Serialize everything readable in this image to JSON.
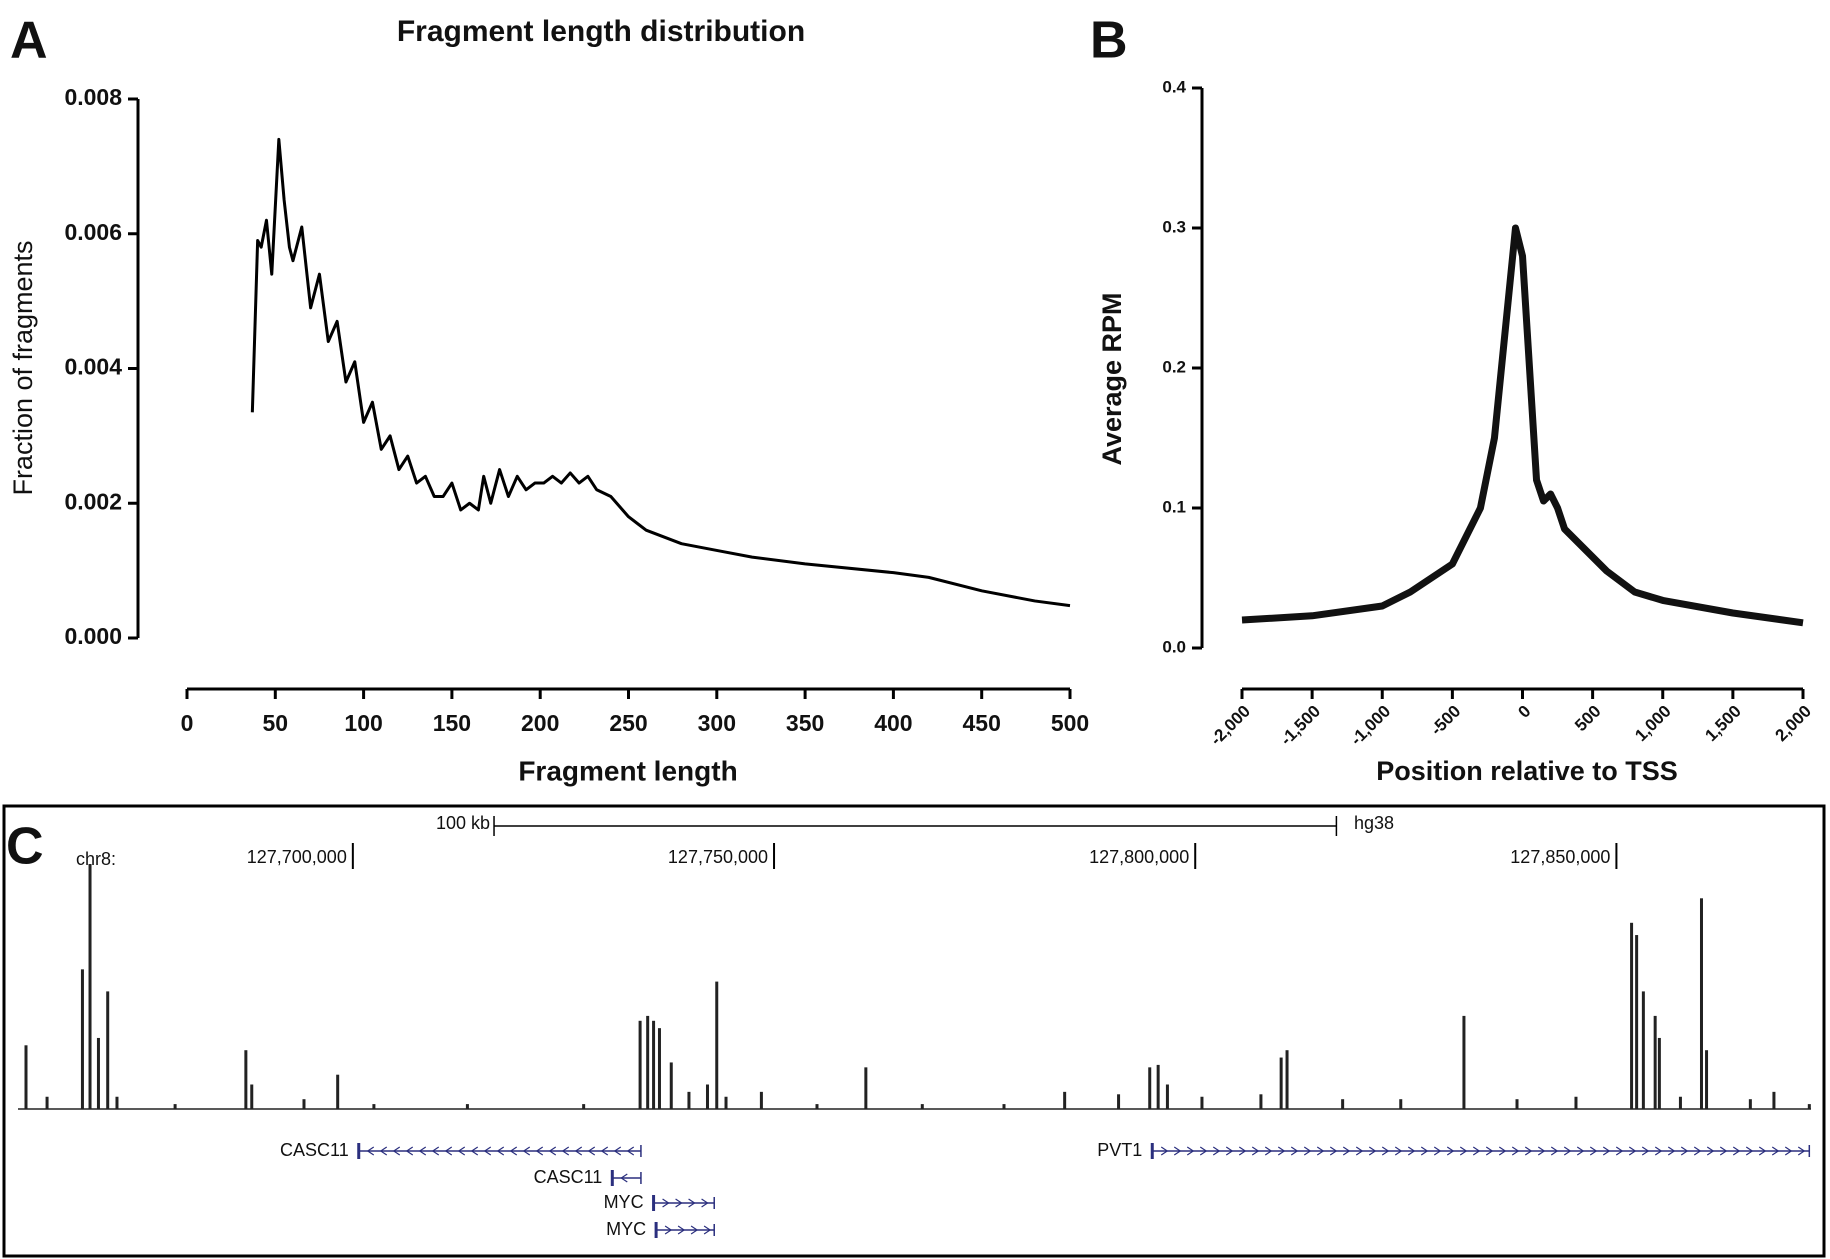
{
  "chart_data": [
    {
      "type": "line",
      "panel": "A",
      "title": "Fragment length distribution",
      "xlabel": "Fragment length",
      "ylabel": "Fraction of fragments",
      "xlim": [
        0,
        500
      ],
      "xticks": [
        0,
        50,
        100,
        150,
        200,
        250,
        300,
        350,
        400,
        450,
        500
      ],
      "ylim": [
        0,
        0.008
      ],
      "yticks": [
        {
          "value": 0,
          "label": "0.000"
        },
        0.002,
        0.004,
        0.006,
        0.008
      ],
      "color": "#000000",
      "x": [
        37,
        40,
        42,
        45,
        48,
        52,
        55,
        58,
        60,
        65,
        70,
        75,
        80,
        85,
        90,
        95,
        100,
        105,
        110,
        115,
        120,
        125,
        130,
        135,
        140,
        145,
        150,
        155,
        160,
        165,
        168,
        172,
        177,
        182,
        187,
        192,
        197,
        202,
        207,
        212,
        217,
        222,
        227,
        232,
        240,
        250,
        260,
        270,
        280,
        300,
        320,
        350,
        400,
        420,
        450,
        480,
        500
      ],
      "values": [
        0.00335,
        0.0059,
        0.0058,
        0.0062,
        0.0054,
        0.0074,
        0.0065,
        0.0058,
        0.0056,
        0.0061,
        0.0049,
        0.0054,
        0.0044,
        0.0047,
        0.0038,
        0.0041,
        0.0032,
        0.0035,
        0.0028,
        0.003,
        0.0025,
        0.0027,
        0.0023,
        0.0024,
        0.0021,
        0.0021,
        0.0023,
        0.0019,
        0.002,
        0.0019,
        0.0024,
        0.002,
        0.0025,
        0.0021,
        0.0024,
        0.0022,
        0.0023,
        0.0023,
        0.0024,
        0.0023,
        0.00245,
        0.0023,
        0.0024,
        0.0022,
        0.0021,
        0.0018,
        0.0016,
        0.0015,
        0.0014,
        0.0013,
        0.0012,
        0.0011,
        0.00097,
        0.0009,
        0.0007,
        0.00055,
        0.00048
      ]
    },
    {
      "type": "line",
      "panel": "B",
      "xlabel": "Position relative to TSS",
      "ylabel": "Average RPM",
      "xlim": [
        -2000,
        2000
      ],
      "xticks": [
        {
          "value": -2000,
          "label": "-2,000"
        },
        {
          "value": -1500,
          "label": "-1,500"
        },
        {
          "value": -1000,
          "label": "-1,000"
        },
        -500,
        0,
        500,
        {
          "value": 1000,
          "label": "1,000"
        },
        {
          "value": 1500,
          "label": "1,500"
        },
        {
          "value": 2000,
          "label": "2,000"
        }
      ],
      "ylim": [
        0,
        0.4
      ],
      "yticks": [
        {
          "value": 0,
          "label": "0.0"
        },
        0.1,
        0.2,
        0.3,
        0.4
      ],
      "color": "#111111",
      "x": [
        -2000,
        -1500,
        -1000,
        -800,
        -500,
        -300,
        -200,
        -100,
        -50,
        0,
        50,
        100,
        150,
        200,
        250,
        300,
        400,
        500,
        600,
        800,
        1000,
        1500,
        2000
      ],
      "values": [
        0.02,
        0.023,
        0.03,
        0.04,
        0.06,
        0.1,
        0.15,
        0.25,
        0.3,
        0.28,
        0.2,
        0.12,
        0.105,
        0.11,
        0.1,
        0.085,
        0.075,
        0.065,
        0.055,
        0.04,
        0.034,
        0.025,
        0.018
      ]
    },
    {
      "type": "genome_track",
      "panel": "C",
      "chromosome": "chr8:",
      "assembly": "hg38",
      "scale_bar": {
        "label": "100 kb",
        "start": 127716760,
        "length": 100000
      },
      "xlim": [
        127660250,
        127873100
      ],
      "xticks": [
        {
          "value": 127700000,
          "label": "127,700,000"
        },
        {
          "value": 127750000,
          "label": "127,750,000"
        },
        {
          "value": 127800000,
          "label": "127,800,000"
        },
        {
          "value": 127850000,
          "label": "127,850,000"
        }
      ],
      "ylim": [
        0,
        100
      ],
      "color": "#222222",
      "x": [
        127661200,
        127663700,
        127667900,
        127668800,
        127669800,
        127670900,
        127672000,
        127678900,
        127687300,
        127688000,
        127694200,
        127698200,
        127702500,
        127713600,
        127727400,
        127734100,
        127735000,
        127735700,
        127736400,
        127737800,
        127739900,
        127742100,
        127743200,
        127744300,
        127748500,
        127755100,
        127760900,
        127767600,
        127777300,
        127784500,
        127790900,
        127794600,
        127795600,
        127796700,
        127800800,
        127807800,
        127810200,
        127810900,
        127817500,
        127824400,
        127831900,
        127838200,
        127845200,
        127851800,
        127852400,
        127853200,
        127854600,
        127855100,
        127857600,
        127860100,
        127860700,
        127865900,
        127868700,
        127872900
      ],
      "values": [
        26,
        5,
        57,
        100,
        29,
        48,
        5,
        2,
        24,
        10,
        4,
        14,
        2,
        2,
        2,
        36,
        38,
        36,
        33,
        19,
        7,
        10,
        52,
        5,
        7,
        2,
        17,
        2,
        2,
        7,
        6,
        17,
        18,
        10,
        5,
        6,
        21,
        24,
        4,
        4,
        38,
        4,
        5,
        76,
        71,
        48,
        38,
        29,
        5,
        86,
        24,
        4,
        7,
        2
      ],
      "genes": [
        {
          "name": "CASC11",
          "start": 127700700,
          "end": 127734200,
          "strand": "-"
        },
        {
          "name": "CASC11",
          "start": 127730800,
          "end": 127734200,
          "strand": "-"
        },
        {
          "name": "MYC",
          "start": 127735700,
          "end": 127742900,
          "strand": "+"
        },
        {
          "name": "MYC",
          "start": 127736000,
          "end": 127742900,
          "strand": "+"
        },
        {
          "name": "PVT1",
          "start": 127794900,
          "end": 127872900,
          "strand": "+"
        }
      ],
      "gene_color": "#2b2f7e"
    }
  ]
}
